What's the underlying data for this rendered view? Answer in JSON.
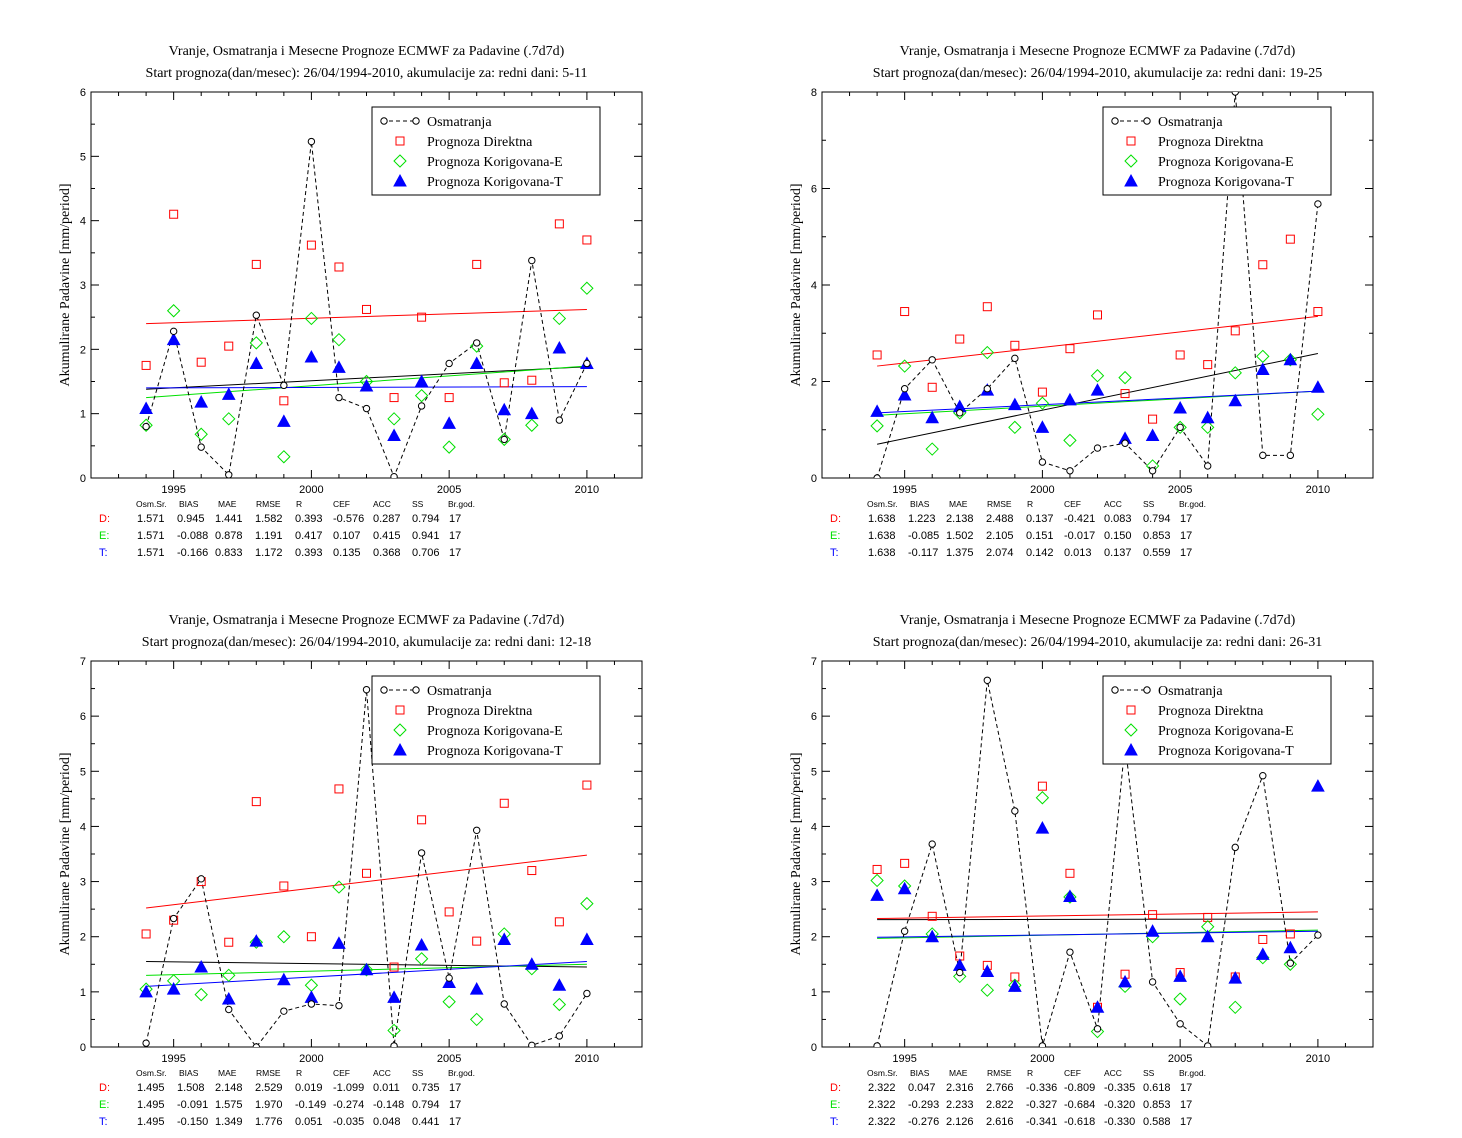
{
  "legend": {
    "obs": "Osmatranja",
    "direct": "Prognoza Direktna",
    "corrE": "Prognoza Korigovana-E",
    "corrT": "Prognoza Korigovana-T"
  },
  "colors": {
    "obs": "#000000",
    "direct": "#ff0000",
    "corrE": "#00e000",
    "corrT": "#0000ff"
  },
  "stats_header": [
    "Osm.Sr.",
    "BIAS",
    "MAE",
    "RMSE",
    "R",
    "CEF",
    "ACC",
    "SS",
    "Br.god."
  ],
  "chart_data": [
    {
      "type": "scatter",
      "title": "Vranje, Osmatranja i Mesecne Prognoze ECMWF za Padavine (.7d7d)",
      "subtitle": "Start prognoza(dan/mesec): 26/04/1994-2010, akumulacije za: redni dani: 5-11",
      "ylabel": "Akumulirane Padavine [mm/period]",
      "xlim": [
        1992,
        2012
      ],
      "ylim": [
        0,
        6
      ],
      "xticks": [
        1995,
        2000,
        2005,
        2010
      ],
      "yticks": [
        0,
        1,
        2,
        3,
        4,
        5,
        6
      ],
      "x": [
        1994,
        1995,
        1996,
        1997,
        1998,
        1999,
        2000,
        2001,
        2002,
        2003,
        2004,
        2005,
        2006,
        2007,
        2008,
        2009,
        2010
      ],
      "obs": [
        0.8,
        2.28,
        0.48,
        0.05,
        2.53,
        1.44,
        5.23,
        1.25,
        1.08,
        0.02,
        1.12,
        1.78,
        2.1,
        0.6,
        3.38,
        0.9,
        1.78
      ],
      "direct": [
        1.75,
        4.1,
        1.8,
        2.05,
        3.32,
        1.2,
        3.62,
        3.28,
        2.62,
        1.25,
        2.5,
        1.25,
        3.32,
        1.48,
        1.52,
        3.95,
        3.7
      ],
      "corrE": [
        0.82,
        2.6,
        0.68,
        0.92,
        2.1,
        0.33,
        2.48,
        2.15,
        1.5,
        0.92,
        1.28,
        0.48,
        2.05,
        0.6,
        0.82,
        2.48,
        2.95
      ],
      "corrT": [
        1.08,
        2.15,
        1.18,
        1.3,
        1.78,
        0.88,
        1.88,
        1.72,
        1.43,
        0.66,
        1.5,
        0.85,
        1.78,
        1.06,
        1.0,
        2.02,
        1.78
      ],
      "trends": {
        "obs": [
          [
            1994,
            1.38
          ],
          [
            2010,
            1.73
          ]
        ],
        "direct": [
          [
            1994,
            2.4
          ],
          [
            2010,
            2.62
          ]
        ],
        "corrE": [
          [
            1994,
            1.25
          ],
          [
            2010,
            1.74
          ]
        ],
        "corrT": [
          [
            1994,
            1.4
          ],
          [
            2010,
            1.42
          ]
        ]
      },
      "stats": [
        [
          "D:",
          "1.571",
          "0.945",
          "1.441",
          "1.582",
          "0.393",
          "-0.576",
          "0.287",
          "0.794",
          "17"
        ],
        [
          "E:",
          "1.571",
          "-0.088",
          "0.878",
          "1.191",
          "0.417",
          "0.107",
          "0.415",
          "0.941",
          "17"
        ],
        [
          "T:",
          "1.571",
          "-0.166",
          "0.833",
          "1.172",
          "0.393",
          "0.135",
          "0.368",
          "0.706",
          "17"
        ]
      ]
    },
    {
      "type": "scatter",
      "title": "Vranje, Osmatranja i Mesecne Prognoze ECMWF za Padavine (.7d7d)",
      "subtitle": "Start prognoza(dan/mesec): 26/04/1994-2010, akumulacije za: redni dani: 19-25",
      "ylabel": "Akumulirane Padavine [mm/period]",
      "xlim": [
        1992,
        2012
      ],
      "ylim": [
        0,
        8
      ],
      "xticks": [
        1995,
        2000,
        2005,
        2010
      ],
      "yticks": [
        0,
        2,
        4,
        6,
        8
      ],
      "x": [
        1994,
        1995,
        1996,
        1997,
        1998,
        1999,
        2000,
        2001,
        2002,
        2003,
        2004,
        2005,
        2006,
        2007,
        2008,
        2009,
        2010
      ],
      "obs": [
        0.0,
        1.85,
        2.45,
        1.35,
        1.85,
        2.48,
        0.33,
        0.15,
        0.62,
        0.72,
        0.15,
        1.05,
        0.25,
        8.0,
        0.47,
        0.47,
        5.68
      ],
      "direct": [
        2.55,
        3.45,
        1.88,
        2.88,
        3.55,
        2.75,
        1.78,
        2.68,
        3.38,
        1.75,
        1.22,
        2.55,
        2.35,
        3.05,
        4.42,
        4.95,
        3.45
      ],
      "corrE": [
        1.08,
        2.32,
        0.6,
        1.35,
        2.6,
        1.05,
        1.55,
        0.78,
        2.12,
        2.08,
        0.25,
        1.05,
        1.05,
        2.18,
        2.52,
        2.45,
        1.32
      ],
      "corrT": [
        1.38,
        1.72,
        1.25,
        1.48,
        1.82,
        1.52,
        1.05,
        1.62,
        1.82,
        0.82,
        0.88,
        1.45,
        1.25,
        1.6,
        2.25,
        2.45,
        1.88
      ],
      "trends": {
        "obs": [
          [
            1994,
            0.7
          ],
          [
            2010,
            2.58
          ]
        ],
        "direct": [
          [
            1994,
            2.32
          ],
          [
            2010,
            3.35
          ]
        ],
        "corrE": [
          [
            1994,
            1.3
          ],
          [
            2010,
            1.8
          ]
        ],
        "corrT": [
          [
            1994,
            1.35
          ],
          [
            2010,
            1.8
          ]
        ]
      },
      "stats": [
        [
          "D:",
          "1.638",
          "1.223",
          "2.138",
          "2.488",
          "0.137",
          "-0.421",
          "0.083",
          "0.794",
          "17"
        ],
        [
          "E:",
          "1.638",
          "-0.085",
          "1.502",
          "2.105",
          "0.151",
          "-0.017",
          "0.150",
          "0.853",
          "17"
        ],
        [
          "T:",
          "1.638",
          "-0.117",
          "1.375",
          "2.074",
          "0.142",
          "0.013",
          "0.137",
          "0.559",
          "17"
        ]
      ]
    },
    {
      "type": "scatter",
      "title": "Vranje, Osmatranja i Mesecne Prognoze ECMWF za Padavine (.7d7d)",
      "subtitle": "Start prognoza(dan/mesec): 26/04/1994-2010, akumulacije za: redni dani: 12-18",
      "ylabel": "Akumulirane Padavine [mm/period]",
      "xlim": [
        1992,
        2012
      ],
      "ylim": [
        0,
        7
      ],
      "xticks": [
        1995,
        2000,
        2005,
        2010
      ],
      "yticks": [
        0,
        1,
        2,
        3,
        4,
        5,
        6,
        7
      ],
      "x": [
        1994,
        1995,
        1996,
        1997,
        1998,
        1999,
        2000,
        2001,
        2002,
        2003,
        2004,
        2005,
        2006,
        2007,
        2008,
        2009,
        2010
      ],
      "obs": [
        0.07,
        2.33,
        3.05,
        0.68,
        0.0,
        0.65,
        0.78,
        0.75,
        6.48,
        0.02,
        3.52,
        1.25,
        3.93,
        0.78,
        0.03,
        0.2,
        0.97
      ],
      "direct": [
        2.05,
        2.3,
        3.0,
        1.9,
        4.45,
        2.92,
        2.0,
        4.68,
        3.15,
        1.45,
        4.12,
        2.45,
        1.92,
        4.42,
        3.2,
        2.27,
        4.75
      ],
      "corrE": [
        1.05,
        1.2,
        0.95,
        1.3,
        1.9,
        2.0,
        1.12,
        2.9,
        1.4,
        0.3,
        1.6,
        0.82,
        0.5,
        2.05,
        1.42,
        0.77,
        2.6
      ],
      "corrT": [
        1.0,
        1.05,
        1.45,
        0.87,
        1.92,
        1.22,
        0.9,
        1.88,
        1.4,
        0.9,
        1.85,
        1.17,
        1.05,
        1.95,
        1.5,
        1.12,
        1.95
      ],
      "trends": {
        "obs": [
          [
            1994,
            1.55
          ],
          [
            2010,
            1.45
          ]
        ],
        "direct": [
          [
            1994,
            2.52
          ],
          [
            2010,
            3.48
          ]
        ],
        "corrE": [
          [
            1994,
            1.3
          ],
          [
            2010,
            1.5
          ]
        ],
        "corrT": [
          [
            1994,
            1.1
          ],
          [
            2010,
            1.55
          ]
        ]
      },
      "stats": [
        [
          "D:",
          "1.495",
          "1.508",
          "2.148",
          "2.529",
          "0.019",
          "-1.099",
          "0.011",
          "0.735",
          "17"
        ],
        [
          "E:",
          "1.495",
          "-0.091",
          "1.575",
          "1.970",
          "-0.149",
          "-0.274",
          "-0.148",
          "0.794",
          "17"
        ],
        [
          "T:",
          "1.495",
          "-0.150",
          "1.349",
          "1.776",
          "0.051",
          "-0.035",
          "0.048",
          "0.441",
          "17"
        ]
      ]
    },
    {
      "type": "scatter",
      "title": "Vranje, Osmatranja i Mesecne Prognoze ECMWF za Padavine (.7d7d)",
      "subtitle": "Start prognoza(dan/mesec): 26/04/1994-2010, akumulacije za: redni dani: 26-31",
      "ylabel": "Akumulirane Padavine [mm/period]",
      "xlim": [
        1992,
        2012
      ],
      "ylim": [
        0,
        7
      ],
      "xticks": [
        1995,
        2000,
        2005,
        2010
      ],
      "yticks": [
        0,
        1,
        2,
        3,
        4,
        5,
        6,
        7
      ],
      "x": [
        1994,
        1995,
        1996,
        1997,
        1998,
        1999,
        2000,
        2001,
        2002,
        2003,
        2004,
        2005,
        2006,
        2007,
        2008,
        2009,
        2010
      ],
      "obs": [
        0.02,
        2.1,
        3.68,
        1.35,
        6.65,
        4.28,
        0.02,
        1.72,
        0.33,
        5.5,
        1.18,
        0.42,
        0.02,
        3.62,
        4.92,
        1.52,
        2.03
      ],
      "direct": [
        3.22,
        3.33,
        2.37,
        1.65,
        1.48,
        1.27,
        4.73,
        3.15,
        0.72,
        1.32,
        2.4,
        1.35,
        2.35,
        1.27,
        1.95,
        2.05,
        5.73
      ],
      "corrE": [
        3.02,
        2.92,
        2.05,
        1.28,
        1.03,
        1.12,
        4.52,
        2.72,
        0.28,
        1.1,
        2.0,
        0.87,
        2.18,
        0.72,
        1.62,
        1.5,
        5.6
      ],
      "corrT": [
        2.75,
        2.87,
        2.0,
        1.48,
        1.37,
        1.1,
        3.97,
        2.73,
        0.72,
        1.18,
        2.1,
        1.28,
        2.0,
        1.25,
        1.68,
        1.8,
        4.73
      ],
      "trends": {
        "obs": [
          [
            1994,
            2.31
          ],
          [
            2010,
            2.32
          ]
        ],
        "direct": [
          [
            1994,
            2.33
          ],
          [
            2010,
            2.45
          ]
        ],
        "corrE": [
          [
            1994,
            1.97
          ],
          [
            2010,
            2.12
          ]
        ],
        "corrT": [
          [
            1994,
            1.99
          ],
          [
            2010,
            2.1
          ]
        ]
      },
      "stats": [
        [
          "D:",
          "2.322",
          "0.047",
          "2.316",
          "2.766",
          "-0.336",
          "-0.809",
          "-0.335",
          "0.618",
          "17"
        ],
        [
          "E:",
          "2.322",
          "-0.293",
          "2.233",
          "2.822",
          "-0.327",
          "-0.684",
          "-0.320",
          "0.853",
          "17"
        ],
        [
          "T:",
          "2.322",
          "-0.276",
          "2.126",
          "2.616",
          "-0.341",
          "-0.618",
          "-0.330",
          "0.588",
          "17"
        ]
      ]
    }
  ]
}
